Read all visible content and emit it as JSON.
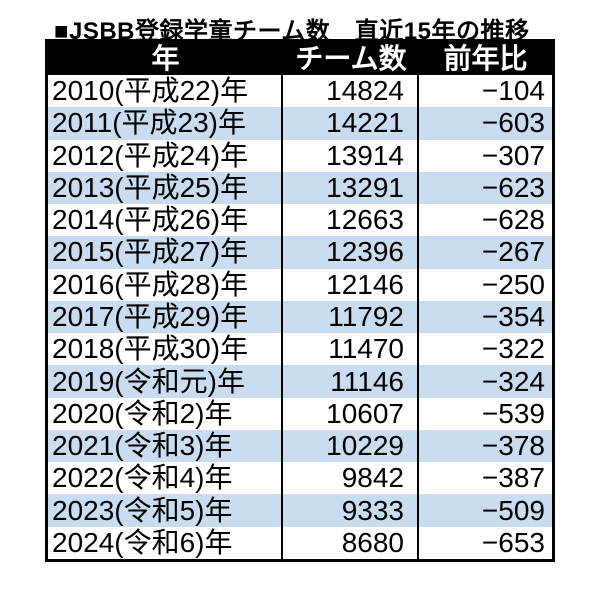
{
  "title": "■JSBB登録学童チーム数　直近15年の推移",
  "table": {
    "headers": [
      "年",
      "チーム数",
      "前年比"
    ]
  },
  "colors": {
    "stripe_blue": "#c9dcf0",
    "row_white": "#ffffff",
    "header_bg": "#000000",
    "header_text": "#ffffff",
    "border": "#000000"
  },
  "chart_data": {
    "type": "table",
    "title": "■JSBB登録学童チーム数　直近15年の推移",
    "columns": [
      "年",
      "チーム数",
      "前年比"
    ],
    "rows": [
      [
        "2010(平成22)年",
        14824,
        -104
      ],
      [
        "2011(平成23)年",
        14221,
        -603
      ],
      [
        "2012(平成24)年",
        13914,
        -307
      ],
      [
        "2013(平成25)年",
        13291,
        -623
      ],
      [
        "2014(平成26)年",
        12663,
        -628
      ],
      [
        "2015(平成27)年",
        12396,
        -267
      ],
      [
        "2016(平成28)年",
        12146,
        -250
      ],
      [
        "2017(平成29)年",
        11792,
        -354
      ],
      [
        "2018(平成30)年",
        11470,
        -322
      ],
      [
        "2019(令和元)年",
        11146,
        -324
      ],
      [
        "2020(令和2)年",
        10607,
        -539
      ],
      [
        "2021(令和3)年",
        10229,
        -378
      ],
      [
        "2022(令和4)年",
        9842,
        -387
      ],
      [
        "2023(令和5)年",
        9333,
        -509
      ],
      [
        "2024(令和6)年",
        8680,
        -653
      ]
    ],
    "layout": {
      "stripe_rows": "alternating, first row white",
      "year_align": "left",
      "number_align": "right"
    }
  }
}
